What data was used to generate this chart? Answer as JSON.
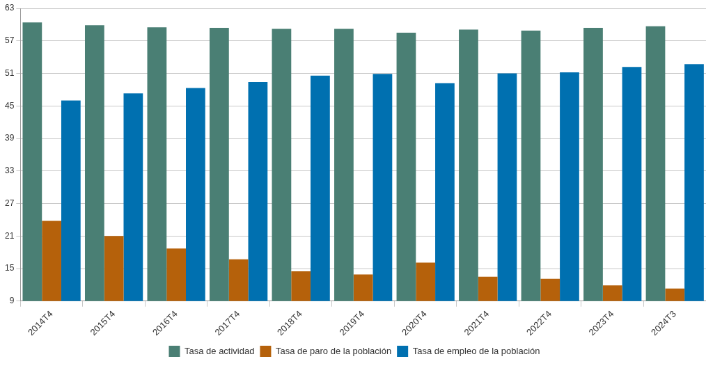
{
  "chart_data": {
    "type": "bar",
    "categories": [
      "2014T4",
      "2015T4",
      "2016T4",
      "2017T4",
      "2018T4",
      "2019T4",
      "2020T4",
      "2021T4",
      "2022T4",
      "2023T4",
      "2024T3"
    ],
    "series": [
      {
        "name": "Tasa de actividad",
        "color": "#4a7f74",
        "values": [
          60.4,
          59.9,
          59.5,
          59.4,
          59.2,
          59.2,
          58.5,
          59.1,
          58.9,
          59.4,
          59.7
        ]
      },
      {
        "name": "Tasa de paro de la población",
        "color": "#b5610b",
        "values": [
          23.8,
          21.0,
          18.7,
          16.7,
          14.5,
          13.9,
          16.1,
          13.5,
          13.1,
          11.9,
          11.3
        ]
      },
      {
        "name": "Tasa de empleo de la población",
        "color": "#0070b0",
        "values": [
          46.0,
          47.3,
          48.3,
          49.4,
          50.6,
          50.9,
          49.2,
          51.0,
          51.2,
          52.2,
          52.7
        ]
      }
    ],
    "ylim": [
      9,
      63
    ],
    "yticks": [
      9,
      15,
      21,
      27,
      33,
      39,
      45,
      51,
      57,
      63
    ],
    "grid": "y",
    "legend": "bottom"
  }
}
